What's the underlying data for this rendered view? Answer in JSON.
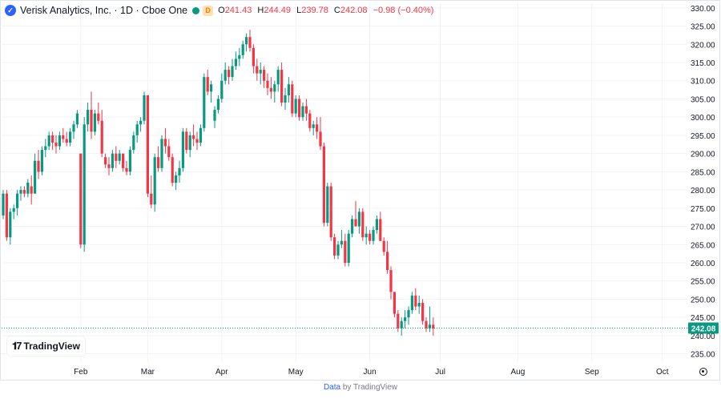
{
  "header": {
    "symbol_title": "Verisk Analytics, Inc. · 1D · Cboe One",
    "delay_badge": "D",
    "ohlc": {
      "o_label": "O",
      "o_value": "241.43",
      "h_label": "H",
      "h_value": "244.49",
      "l_label": "L",
      "l_value": "239.78",
      "c_label": "C",
      "c_value": "242.08",
      "change": "−0.98 (−0.40%)"
    }
  },
  "brand": {
    "name": "TradingView"
  },
  "footer": {
    "data_label": "Data",
    "by_label": "by TradingView"
  },
  "chart_data": {
    "type": "candlestick",
    "yticks": [
      "330.00",
      "325.00",
      "320.00",
      "315.00",
      "310.00",
      "305.00",
      "300.00",
      "295.00",
      "290.00",
      "285.00",
      "280.00",
      "275.00",
      "270.00",
      "265.00",
      "260.00",
      "255.00",
      "250.00",
      "245.00",
      "240.00",
      "235.00"
    ],
    "ylim": [
      232.5,
      331.5
    ],
    "months": [
      {
        "label": "Feb",
        "day": 22
      },
      {
        "label": "Mar",
        "day": 41
      },
      {
        "label": "Apr",
        "day": 62
      },
      {
        "label": "May",
        "day": 83
      },
      {
        "label": "Jun",
        "day": 104
      },
      {
        "label": "Jul",
        "day": 124
      },
      {
        "label": "Aug",
        "day": 146
      },
      {
        "label": "Sep",
        "day": 167
      },
      {
        "label": "Oct",
        "day": 187
      }
    ],
    "last_price": "242.08",
    "last_value": 242.08,
    "colors": {
      "up": "#089981",
      "down": "#f23645",
      "grid": "#f0f3fa"
    },
    "candles": [
      [
        273,
        280,
        272,
        279
      ],
      [
        279,
        280,
        266,
        267
      ],
      [
        267,
        275,
        265,
        274
      ],
      [
        274,
        276,
        272,
        275
      ],
      [
        275,
        280,
        273,
        279
      ],
      [
        279,
        281,
        277,
        280
      ],
      [
        280,
        281,
        278,
        279
      ],
      [
        279,
        283,
        278,
        282
      ],
      [
        281,
        284,
        276,
        279
      ],
      [
        279,
        290,
        279,
        288
      ],
      [
        288,
        291,
        283,
        285
      ],
      [
        285,
        292,
        284,
        291
      ],
      [
        291,
        294,
        289,
        292
      ],
      [
        292,
        296,
        291,
        295
      ],
      [
        295,
        296,
        291,
        293
      ],
      [
        293,
        295,
        290,
        292
      ],
      [
        292,
        296,
        291,
        295
      ],
      [
        295,
        297,
        293,
        294
      ],
      [
        294,
        296,
        292,
        293
      ],
      [
        293,
        297,
        292,
        296
      ],
      [
        296,
        299,
        294,
        298
      ],
      [
        298,
        302,
        297,
        301
      ],
      [
        290,
        290,
        264,
        265
      ],
      [
        265,
        300,
        263,
        298
      ],
      [
        298,
        304,
        296,
        302
      ],
      [
        302,
        307,
        294,
        296
      ],
      [
        296,
        302,
        295,
        301
      ],
      [
        301,
        304,
        298,
        299
      ],
      [
        299,
        302,
        289,
        290
      ],
      [
        289,
        290,
        286,
        287
      ],
      [
        287,
        289,
        284,
        286
      ],
      [
        286,
        291,
        285,
        290
      ],
      [
        290,
        292,
        286,
        288
      ],
      [
        288,
        291,
        287,
        290
      ],
      [
        290,
        290,
        285,
        286
      ],
      [
        286,
        288,
        284,
        285
      ],
      [
        285,
        292,
        284,
        291
      ],
      [
        291,
        296,
        290,
        295
      ],
      [
        295,
        299,
        293,
        298
      ],
      [
        298,
        300,
        296,
        299
      ],
      [
        299,
        307,
        298,
        306
      ],
      [
        306,
        306,
        278,
        279
      ],
      [
        279,
        284,
        275,
        276
      ],
      [
        276,
        290,
        274,
        289
      ],
      [
        289,
        292,
        285,
        286
      ],
      [
        286,
        295,
        285,
        294
      ],
      [
        294,
        297,
        290,
        292
      ],
      [
        292,
        294,
        288,
        289
      ],
      [
        289,
        290,
        281,
        282
      ],
      [
        282,
        285,
        280,
        284
      ],
      [
        284,
        288,
        282,
        286
      ],
      [
        286,
        297,
        285,
        296
      ],
      [
        296,
        297,
        290,
        291
      ],
      [
        291,
        296,
        289,
        295
      ],
      [
        295,
        298,
        292,
        294
      ],
      [
        294,
        296,
        291,
        293
      ],
      [
        293,
        298,
        292,
        297
      ],
      [
        297,
        312,
        296,
        311
      ],
      [
        311,
        313,
        306,
        307
      ],
      [
        307,
        310,
        304,
        309
      ],
      [
        299,
        303,
        297,
        302
      ],
      [
        302,
        306,
        301,
        305
      ],
      [
        305,
        312,
        304,
        310
      ],
      [
        310,
        315,
        309,
        313
      ],
      [
        313,
        314,
        309,
        311
      ],
      [
        311,
        316,
        310,
        314
      ],
      [
        314,
        318,
        313,
        316
      ],
      [
        316,
        319,
        314,
        317
      ],
      [
        317,
        321,
        316,
        320
      ],
      [
        320,
        323,
        318,
        322
      ],
      [
        322,
        324,
        318,
        319
      ],
      [
        319,
        320,
        312,
        314
      ],
      [
        314,
        316,
        310,
        312
      ],
      [
        312,
        315,
        309,
        313
      ],
      [
        313,
        314,
        308,
        310
      ],
      [
        310,
        312,
        306,
        308
      ],
      [
        308,
        311,
        305,
        307
      ],
      [
        307,
        310,
        304,
        309
      ],
      [
        309,
        314,
        307,
        313
      ],
      [
        313,
        315,
        303,
        304
      ],
      [
        304,
        308,
        302,
        306
      ],
      [
        306,
        311,
        304,
        309
      ],
      [
        309,
        310,
        300,
        301
      ],
      [
        301,
        306,
        300,
        305
      ],
      [
        305,
        306,
        299,
        300
      ],
      [
        300,
        304,
        299,
        303
      ],
      [
        303,
        305,
        299,
        301
      ],
      [
        301,
        302,
        296,
        297
      ],
      [
        297,
        299,
        295,
        298
      ],
      [
        298,
        300,
        294,
        296
      ],
      [
        296,
        300,
        291,
        292
      ],
      [
        292,
        293,
        270,
        271
      ],
      [
        271,
        282,
        270,
        281
      ],
      [
        281,
        282,
        266,
        267
      ],
      [
        267,
        268,
        261,
        262
      ],
      [
        262,
        266,
        261,
        265
      ],
      [
        265,
        269,
        264,
        266
      ],
      [
        266,
        268,
        259,
        260
      ],
      [
        260,
        269,
        259,
        268
      ],
      [
        268,
        273,
        267,
        272
      ],
      [
        272,
        277,
        270,
        270
      ],
      [
        270,
        275,
        268,
        274
      ],
      [
        274,
        275,
        266,
        267
      ],
      [
        267,
        270,
        265,
        268
      ],
      [
        268,
        269,
        265,
        266
      ],
      [
        266,
        270,
        265,
        269
      ],
      [
        269,
        273,
        268,
        272
      ],
      [
        272,
        274,
        266,
        266
      ],
      [
        266,
        267,
        262,
        263
      ],
      [
        263,
        266,
        257,
        258
      ],
      [
        258,
        259,
        250,
        252
      ],
      [
        252,
        252,
        245,
        246
      ],
      [
        246,
        247,
        241,
        242
      ],
      [
        242,
        245,
        240,
        244
      ],
      [
        244,
        247,
        242,
        245
      ],
      [
        245,
        248,
        243,
        247
      ],
      [
        247,
        252,
        246,
        251
      ],
      [
        251,
        253,
        247,
        248
      ],
      [
        248,
        251,
        246,
        249
      ],
      [
        249,
        250,
        243,
        244
      ],
      [
        244,
        245,
        241,
        242
      ],
      [
        242,
        248,
        241,
        243
      ],
      [
        243,
        245,
        240,
        242
      ]
    ]
  }
}
